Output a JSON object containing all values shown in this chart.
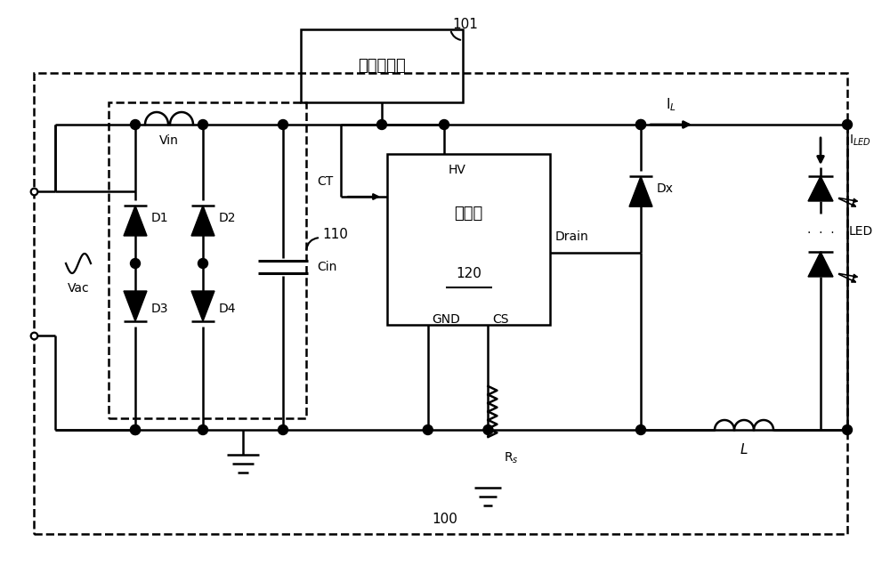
{
  "bg": "#ffffff",
  "lc": "#000000",
  "lw": 1.8,
  "fw": 10.0,
  "fh": 6.45,
  "dpi": 100,
  "sensor_label": "红外感应器",
  "driver_label": "驱动器",
  "label_101": "101",
  "label_110": "110",
  "label_100": "100",
  "label_120": "120",
  "label_Vin": "Vin",
  "label_Vac": "Vac",
  "label_Cin": "Cin",
  "label_D1": "D1",
  "label_D2": "D2",
  "label_D3": "D3",
  "label_D4": "D4",
  "label_HV": "HV",
  "label_CT": "CT",
  "label_GND": "GND",
  "label_CS": "CS",
  "label_Drain": "Drain",
  "label_Rs": "R$_s$",
  "label_Dx": "Dx",
  "label_L": "L",
  "label_IL": "I$_L$",
  "label_ILED": "I$_{LED}$",
  "label_LED": "LED"
}
